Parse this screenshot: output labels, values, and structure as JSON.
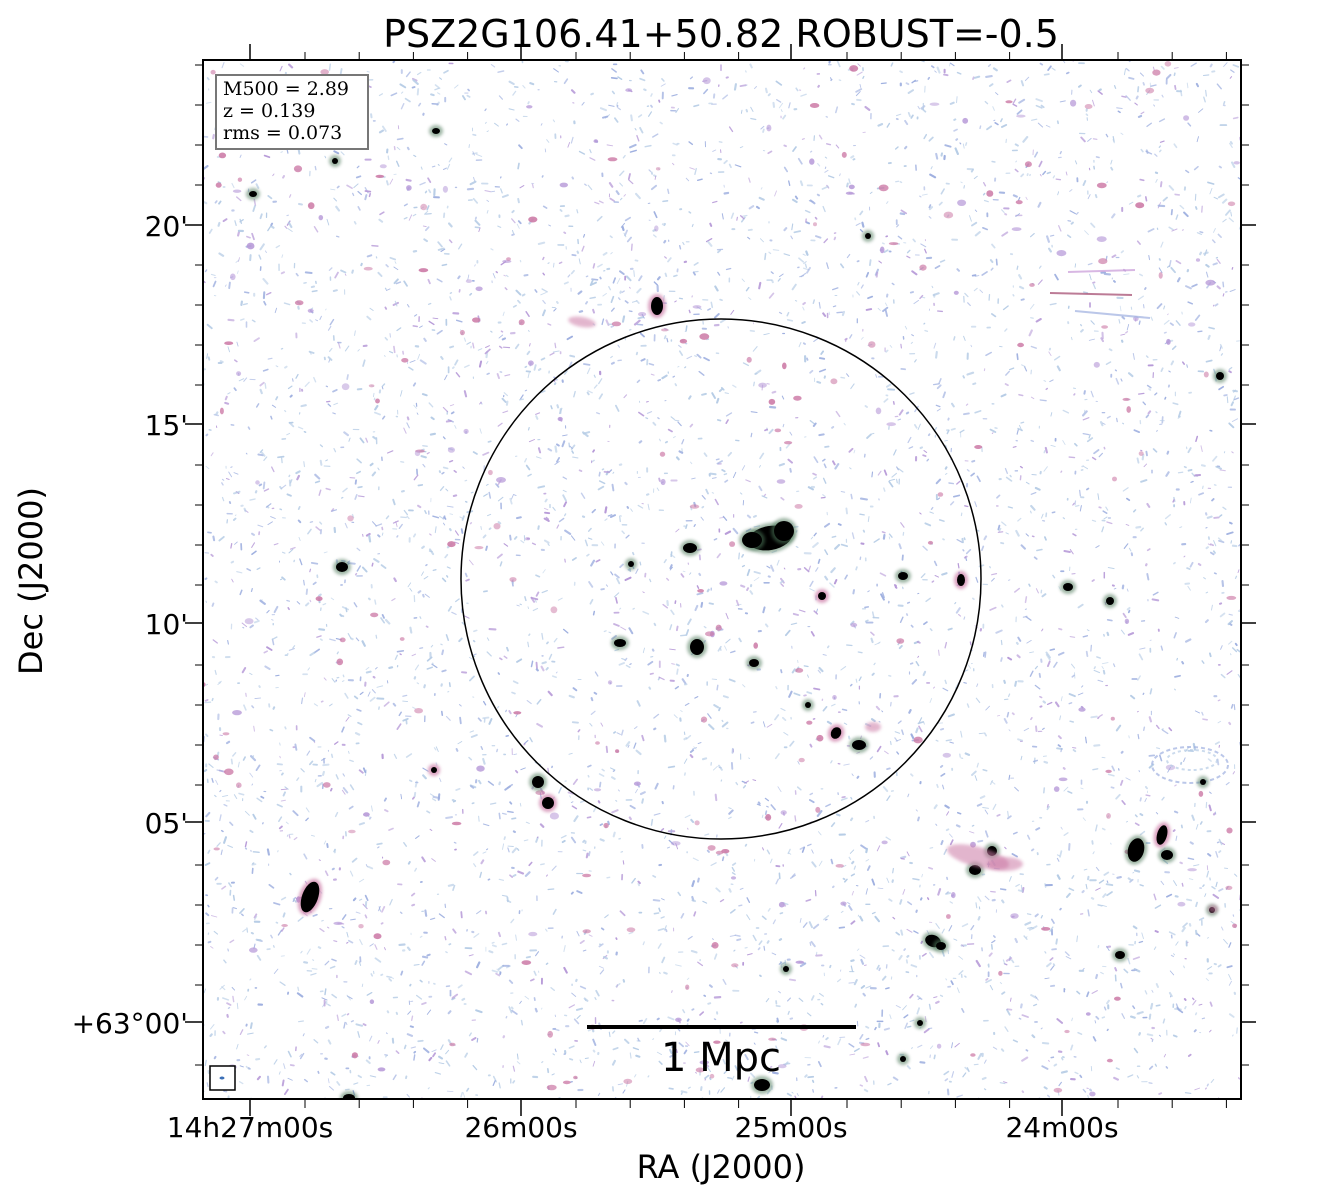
{
  "title": "PSZ2G106.41+50.82 ROBUST=-0.5",
  "info_box": {
    "m500": "M500 = 2.89",
    "z": "z = 0.139",
    "rms": "rms = 0.073"
  },
  "axes": {
    "xlabel": "RA (J2000)",
    "ylabel": "Dec (J2000)",
    "x_ticks": [
      "14h27m00s",
      "26m00s",
      "25m00s",
      "24m00s"
    ],
    "y_ticks": [
      "20'",
      "15'",
      "10'",
      "05'",
      "+63°00'"
    ]
  },
  "scale_bar": {
    "label": "1 Mpc"
  },
  "colors": {
    "noise_light": "#b7cde6",
    "noise_blue": "#9fb0e0",
    "noise_violet": "#b79ad8",
    "noise_pink": "#cc7aa6",
    "source_core": "#000000",
    "source_halo": "#4f7a5c"
  }
}
